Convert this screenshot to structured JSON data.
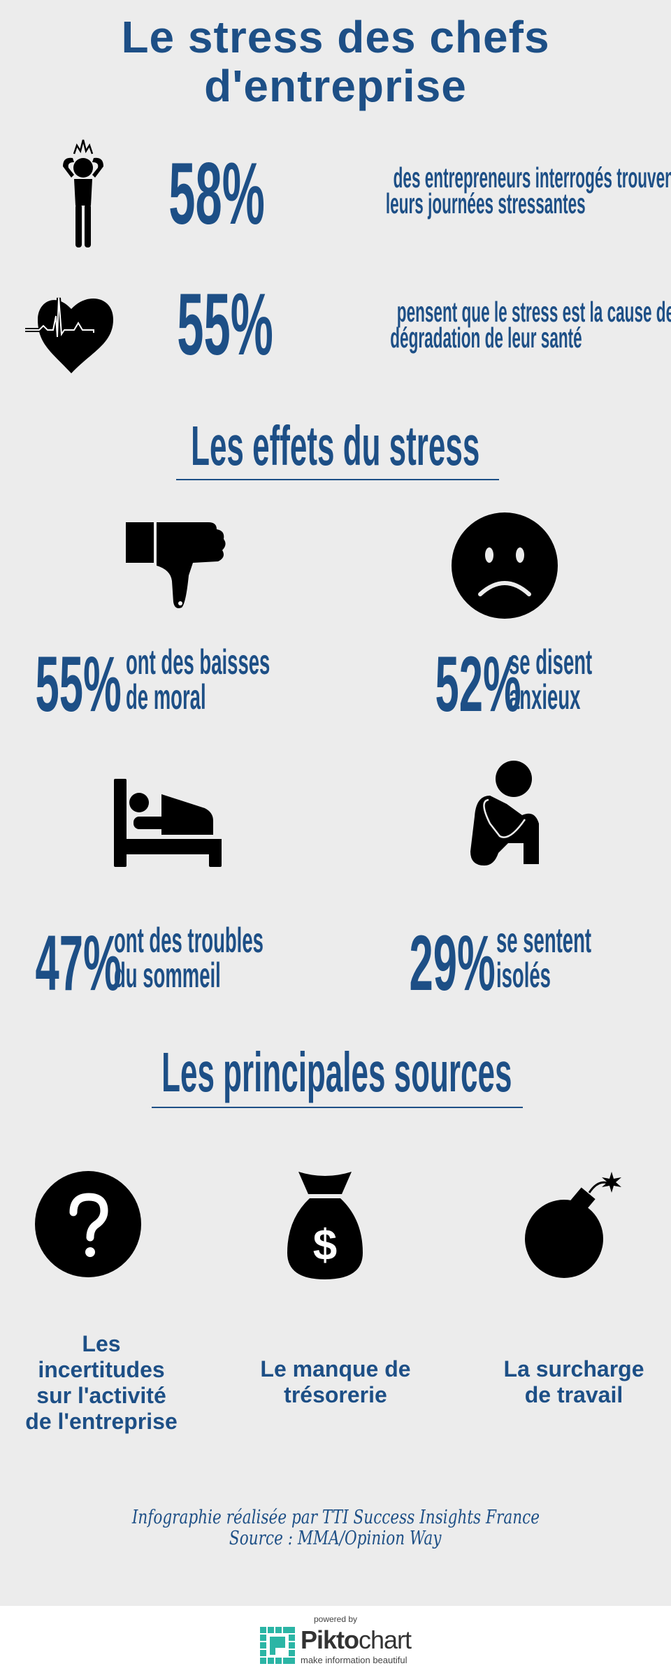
{
  "title": {
    "line1": "Le stress des chefs",
    "line2": "d'entreprise"
  },
  "brand_color": "#1d4f86",
  "stats": [
    {
      "icon": "stressed-person-icon",
      "value": "58%",
      "line1": "des entrepreneurs interrogés trouvent",
      "line2": "leurs journées stressantes"
    },
    {
      "icon": "heartbeat-heart-icon",
      "value": "55%",
      "line1": "pensent que le stress est la cause de la",
      "line2": "dégradation de leur santé"
    }
  ],
  "effects": {
    "heading": "Les effets du stress",
    "items": [
      {
        "icon": "thumbs-down-icon",
        "value": "55%",
        "line1": "ont des baisses",
        "line2": "de  moral"
      },
      {
        "icon": "sad-face-icon",
        "value": "52%",
        "line1": "se disent",
        "line2": "anxieux"
      },
      {
        "icon": "bed-icon",
        "value": "47%",
        "line1": "ont des troubles",
        "line2": "du sommeil"
      },
      {
        "icon": "isolated-person-icon",
        "value": "29%",
        "line1": "se sentent",
        "line2": "isolés"
      }
    ]
  },
  "sources": {
    "heading": "Les principales sources",
    "items": [
      {
        "icon": "question-mark-icon",
        "lines": [
          "Les",
          "incertitudes",
          "sur l'activité",
          "de l'entreprise"
        ]
      },
      {
        "icon": "money-bag-icon",
        "lines": [
          "Le manque de",
          "trésorerie"
        ]
      },
      {
        "icon": "bomb-icon",
        "lines": [
          "La surcharge",
          "de travail"
        ]
      }
    ]
  },
  "credit": {
    "line1": "Infographie réalisée par TTI Success Insights France",
    "line2": "Source : MMA/Opinion Way"
  },
  "footer": {
    "powered_by": "powered by",
    "brand": "Piktochart",
    "brand_bold": "Pikto",
    "brand_light": "chart",
    "tagline": "make information beautiful",
    "logo_color": "#2bb5a5"
  }
}
